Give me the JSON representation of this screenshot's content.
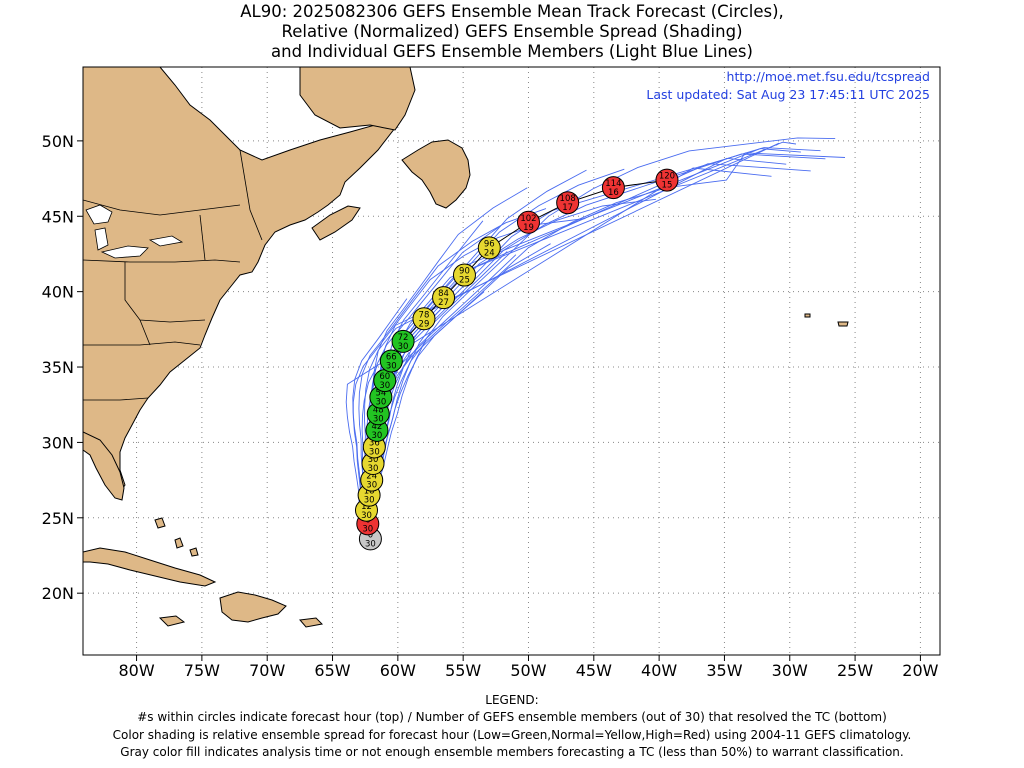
{
  "title": {
    "line1": "AL90: 2025082306 GEFS Ensemble Mean Track Forecast (Circles),",
    "line2": "Relative (Normalized) GEFS Ensemble Spread (Shading)",
    "line3": "and Individual GEFS Ensemble Members (Light Blue Lines)"
  },
  "source": {
    "url": "http://moe.met.fsu.edu/tcspread",
    "updated": "Last updated: Sat Aug 23 17:45:11 UTC 2025"
  },
  "axes": {
    "lon_ticks": [
      "80W",
      "75W",
      "70W",
      "65W",
      "60W",
      "55W",
      "50W",
      "45W",
      "40W",
      "35W",
      "30W",
      "25W",
      "20W"
    ],
    "lat_ticks": [
      "20N",
      "25N",
      "30N",
      "35N",
      "40N",
      "45N",
      "50N"
    ],
    "lon_range": [
      -84.1,
      -18.5
    ],
    "lat_range": [
      15.9,
      54.9
    ]
  },
  "colors": {
    "land": "#deb887",
    "coast": "#000000",
    "members": "#4a6cf0",
    "low_spread": "#22c422",
    "normal_spread": "#e6d830",
    "high_spread": "#ee3333",
    "analysis": "#c8c8c8",
    "link": "#2340e0"
  },
  "track": [
    {
      "hour": "0",
      "members": "30",
      "lat": 23.6,
      "lon": -62.1,
      "spread": "analysis"
    },
    {
      "hour": "6",
      "members": "30",
      "lat": 24.6,
      "lon": -62.3,
      "spread": "high"
    },
    {
      "hour": "12",
      "members": "30",
      "lat": 25.5,
      "lon": -62.4,
      "spread": "normal"
    },
    {
      "hour": "18",
      "members": "30",
      "lat": 26.5,
      "lon": -62.2,
      "spread": "normal"
    },
    {
      "hour": "24",
      "members": "30",
      "lat": 27.5,
      "lon": -62.0,
      "spread": "normal"
    },
    {
      "hour": "30",
      "members": "30",
      "lat": 28.6,
      "lon": -61.9,
      "spread": "normal"
    },
    {
      "hour": "36",
      "members": "30",
      "lat": 29.7,
      "lon": -61.8,
      "spread": "normal"
    },
    {
      "hour": "42",
      "members": "30",
      "lat": 30.8,
      "lon": -61.6,
      "spread": "low"
    },
    {
      "hour": "48",
      "members": "30",
      "lat": 31.9,
      "lon": -61.5,
      "spread": "low"
    },
    {
      "hour": "54",
      "members": "30",
      "lat": 33.0,
      "lon": -61.3,
      "spread": "low"
    },
    {
      "hour": "60",
      "members": "30",
      "lat": 34.1,
      "lon": -61.0,
      "spread": "low"
    },
    {
      "hour": "66",
      "members": "30",
      "lat": 35.4,
      "lon": -60.5,
      "spread": "low"
    },
    {
      "hour": "72",
      "members": "30",
      "lat": 36.7,
      "lon": -59.6,
      "spread": "low"
    },
    {
      "hour": "78",
      "members": "29",
      "lat": 38.2,
      "lon": -58.0,
      "spread": "normal"
    },
    {
      "hour": "84",
      "members": "27",
      "lat": 39.6,
      "lon": -56.5,
      "spread": "normal"
    },
    {
      "hour": "90",
      "members": "25",
      "lat": 41.1,
      "lon": -54.9,
      "spread": "normal"
    },
    {
      "hour": "96",
      "members": "24",
      "lat": 42.9,
      "lon": -53.0,
      "spread": "normal"
    },
    {
      "hour": "102",
      "members": "19",
      "lat": 44.6,
      "lon": -50.0,
      "spread": "high"
    },
    {
      "hour": "108",
      "members": "17",
      "lat": 45.9,
      "lon": -47.0,
      "spread": "high"
    },
    {
      "hour": "114",
      "members": "16",
      "lat": 46.9,
      "lon": -43.5,
      "spread": "high"
    },
    {
      "hour": "120",
      "members": "15",
      "lat": 47.4,
      "lon": -39.4,
      "spread": "high"
    }
  ],
  "legend": {
    "heading": "LEGEND:",
    "line1": "#s within circles indicate forecast hour (top) / Number of GEFS ensemble members (out of 30) that resolved the TC (bottom)",
    "line2": "Color shading is relative ensemble spread for forecast hour (Low=Green,Normal=Yellow,High=Red) using 2004-11 GEFS climatology.",
    "line3": "Gray color fill indicates analysis time or not enough ensemble members forecasting a TC (less than 50%) to warrant classification."
  }
}
